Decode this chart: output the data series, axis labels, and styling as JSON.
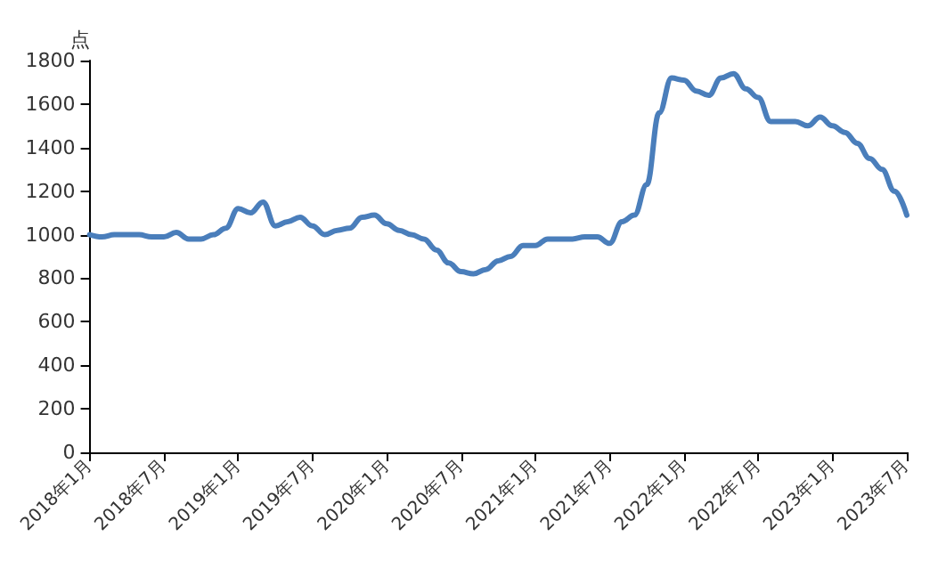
{
  "chart_data": {
    "type": "line",
    "ylabel": "点",
    "categories": [
      "2018年1月",
      null,
      null,
      null,
      null,
      null,
      "2018年7月",
      null,
      null,
      null,
      null,
      null,
      "2019年1月",
      null,
      null,
      null,
      null,
      null,
      "2019年7月",
      null,
      null,
      null,
      null,
      null,
      "2020年1月",
      null,
      null,
      null,
      null,
      null,
      "2020年7月",
      null,
      null,
      null,
      null,
      null,
      "2021年1月",
      null,
      null,
      null,
      null,
      null,
      "2021年7月",
      null,
      null,
      null,
      null,
      null,
      "2022年1月",
      null,
      null,
      null,
      null,
      null,
      "2022年7月",
      null,
      null,
      null,
      null,
      null,
      "2023年1月",
      null,
      null,
      null,
      null,
      null,
      "2023年7月"
    ],
    "series": [
      {
        "color": "#4a7ebb",
        "values": [
          1000,
          990,
          1000,
          1000,
          1000,
          990,
          990,
          1010,
          980,
          980,
          1000,
          1030,
          1120,
          1100,
          1150,
          1040,
          1060,
          1080,
          1040,
          1000,
          1020,
          1030,
          1080,
          1090,
          1050,
          1020,
          1000,
          980,
          930,
          870,
          830,
          820,
          840,
          880,
          900,
          950,
          950,
          980,
          980,
          980,
          990,
          990,
          960,
          1060,
          1090,
          1230,
          1560,
          1720,
          1710,
          1660,
          1640,
          1720,
          1740,
          1670,
          1630,
          1520,
          1520,
          1520,
          1500,
          1540,
          1500,
          1470,
          1420,
          1350,
          1300,
          1200,
          1090
        ]
      }
    ],
    "ylim": [
      0,
      1800
    ],
    "yticks": [
      0,
      200,
      400,
      600,
      800,
      1000,
      1200,
      1400,
      1600,
      1800
    ],
    "grid": false,
    "marker": "none",
    "line_style": "solid"
  }
}
